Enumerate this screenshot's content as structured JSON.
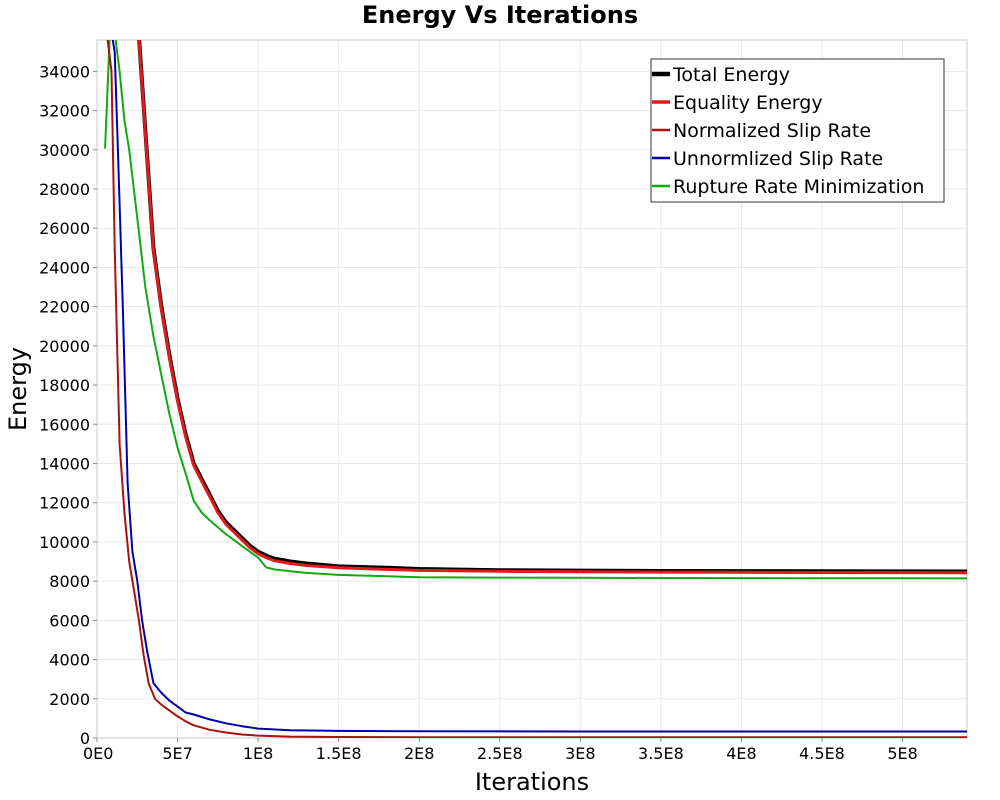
{
  "chart_data": {
    "type": "line",
    "title": "Energy Vs Iterations",
    "xlabel": "Iterations",
    "ylabel": "Energy",
    "xlim": [
      0,
      540000000
    ],
    "ylim": [
      0,
      35600
    ],
    "x_ticks": [
      0,
      50000000,
      100000000,
      150000000,
      200000000,
      250000000,
      300000000,
      350000000,
      400000000,
      450000000,
      500000000
    ],
    "x_tick_labels": [
      "0E0",
      "5E7",
      "1E8",
      "1.5E8",
      "2E8",
      "2.5E8",
      "3E8",
      "3.5E8",
      "4E8",
      "4.5E8",
      "5E8"
    ],
    "y_ticks": [
      0,
      2000,
      4000,
      6000,
      8000,
      10000,
      12000,
      14000,
      16000,
      18000,
      20000,
      22000,
      24000,
      26000,
      28000,
      30000,
      32000,
      34000
    ],
    "y_tick_labels": [
      "0",
      "2000",
      "4000",
      "6000",
      "8000",
      "10000",
      "12000",
      "14000",
      "16000",
      "18000",
      "20000",
      "22000",
      "24000",
      "26000",
      "28000",
      "30000",
      "32000",
      "34000"
    ],
    "grid": true,
    "legend_position": "top-right",
    "series": [
      {
        "name": "Total Energy",
        "color": "#000000",
        "width": 4,
        "x": [
          25000000,
          30000000,
          35000000,
          40000000,
          45000000,
          50000000,
          55000000,
          60000000,
          65000000,
          70000000,
          75000000,
          80000000,
          85000000,
          90000000,
          95000000,
          100000000,
          105000000,
          110000000,
          120000000,
          130000000,
          150000000,
          180000000,
          200000000,
          250000000,
          300000000,
          350000000,
          400000000,
          450000000,
          500000000,
          540000000
        ],
        "y": [
          37000,
          31000,
          25000,
          22000,
          19500,
          17300,
          15500,
          14000,
          13200,
          12400,
          11600,
          11000,
          10600,
          10200,
          9800,
          9500,
          9300,
          9150,
          9000,
          8900,
          8750,
          8680,
          8620,
          8560,
          8540,
          8520,
          8510,
          8500,
          8495,
          8490
        ]
      },
      {
        "name": "Equality Energy",
        "color": "#e31a1c",
        "width": 3,
        "x": [
          25000000,
          30000000,
          35000000,
          40000000,
          45000000,
          50000000,
          55000000,
          60000000,
          65000000,
          70000000,
          75000000,
          80000000,
          85000000,
          90000000,
          95000000,
          100000000,
          105000000,
          110000000,
          120000000,
          130000000,
          150000000,
          180000000,
          200000000,
          250000000,
          300000000,
          350000000,
          400000000,
          450000000,
          500000000,
          540000000
        ],
        "y": [
          36900,
          30900,
          24900,
          21900,
          19400,
          17200,
          15400,
          13900,
          13100,
          12300,
          11500,
          10900,
          10500,
          10100,
          9700,
          9400,
          9200,
          9050,
          8900,
          8800,
          8680,
          8600,
          8550,
          8500,
          8480,
          8460,
          8450,
          8440,
          8435,
          8430
        ]
      },
      {
        "name": "Normalized Slip Rate",
        "color": "#aa1111",
        "width": 2,
        "x": [
          6000000,
          9000000,
          11000000,
          14000000,
          17000000,
          20000000,
          23000000,
          26000000,
          29000000,
          32000000,
          36000000,
          40000000,
          45000000,
          50000000,
          55000000,
          60000000,
          70000000,
          80000000,
          90000000,
          100000000,
          120000000,
          150000000,
          200000000,
          300000000,
          400000000,
          540000000
        ],
        "y": [
          36000,
          34000,
          25000,
          15000,
          11500,
          9000,
          7500,
          6000,
          4200,
          2800,
          2000,
          1700,
          1400,
          1100,
          850,
          650,
          420,
          280,
          180,
          120,
          70,
          50,
          40,
          40,
          40,
          40
        ]
      },
      {
        "name": "Unnormlized Slip Rate",
        "color": "#0000aa",
        "width": 2,
        "x": [
          9000000,
          11000000,
          13000000,
          16000000,
          19000000,
          22000000,
          25000000,
          28000000,
          31000000,
          35000000,
          40000000,
          45000000,
          50000000,
          55000000,
          60000000,
          70000000,
          80000000,
          90000000,
          100000000,
          120000000,
          150000000,
          200000000,
          300000000,
          400000000,
          540000000
        ],
        "y": [
          36000,
          35000,
          30000,
          22000,
          13000,
          9500,
          8000,
          6000,
          4500,
          2800,
          2300,
          1900,
          1600,
          1300,
          1200,
          950,
          750,
          600,
          480,
          400,
          360,
          340,
          330,
          330,
          330
        ]
      },
      {
        "name": "Rupture Rate Minimization",
        "color": "#11aa11",
        "width": 2,
        "x": [
          5000000,
          8000000,
          11000000,
          14000000,
          17000000,
          20000000,
          25000000,
          30000000,
          35000000,
          40000000,
          45000000,
          50000000,
          55000000,
          60000000,
          65000000,
          70000000,
          80000000,
          90000000,
          100000000,
          105000000,
          110000000,
          120000000,
          130000000,
          150000000,
          180000000,
          200000000,
          250000000,
          300000000,
          350000000,
          400000000,
          450000000,
          500000000,
          540000000
        ],
        "y": [
          30100,
          36000,
          36000,
          34000,
          31500,
          30000,
          26500,
          23000,
          20500,
          18500,
          16500,
          14800,
          13500,
          12100,
          11500,
          11100,
          10400,
          9800,
          9200,
          8700,
          8600,
          8500,
          8420,
          8320,
          8250,
          8200,
          8180,
          8170,
          8160,
          8155,
          8150,
          8145,
          8140
        ]
      }
    ]
  }
}
